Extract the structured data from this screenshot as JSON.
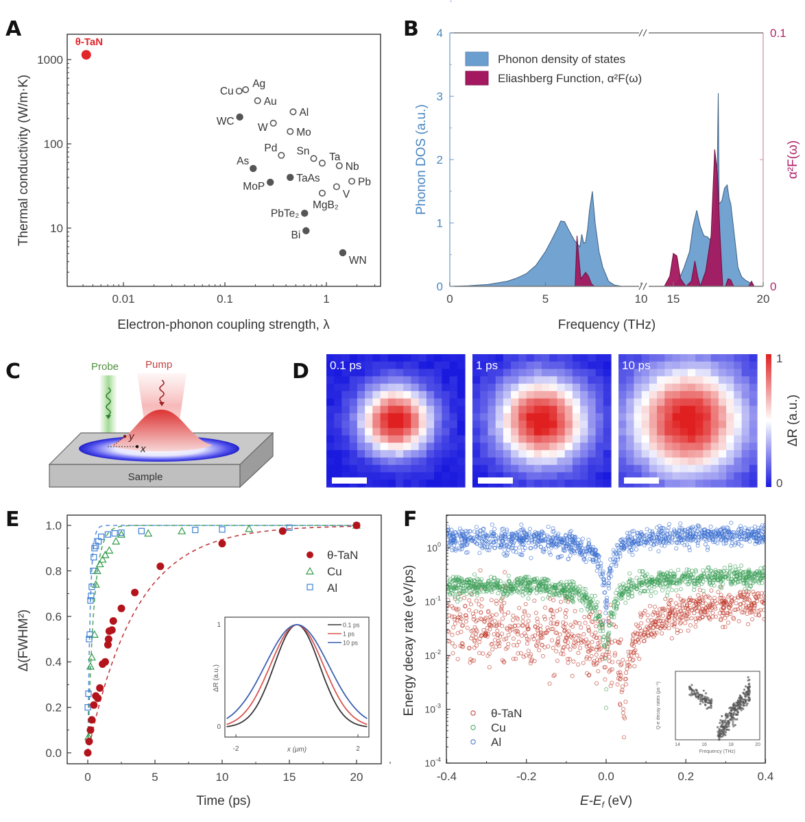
{
  "panels": {
    "A": "A",
    "B": "B",
    "C": "C",
    "D": "D",
    "E": "E",
    "F": "F"
  },
  "chart_data": [
    {
      "id": "A",
      "type": "scatter",
      "title": "",
      "xlabel": "Electron-phonon coupling strength, λ",
      "ylabel": "Thermal conductivity (W/m·K)",
      "xscale": "log",
      "yscale": "log",
      "xlim": [
        0.003,
        3.3
      ],
      "ylim": [
        2.2,
        2000
      ],
      "xticks": [
        {
          "v": 0.01,
          "label": "0.01"
        },
        {
          "v": 0.1,
          "label": "0.1"
        },
        {
          "v": 1,
          "label": "1"
        }
      ],
      "yticks": [
        {
          "v": 10,
          "label": "10"
        },
        {
          "v": 100,
          "label": "100"
        },
        {
          "v": 1000,
          "label": "1000"
        }
      ],
      "highlight_color": "#e3262a",
      "points": [
        {
          "name": "θ-TaN",
          "x": 0.0043,
          "y": 1140,
          "marker": "highlight",
          "label_pos": "above"
        },
        {
          "name": "Cu",
          "x": 0.138,
          "y": 423,
          "marker": "open",
          "label_pos": "left"
        },
        {
          "name": "Ag",
          "x": 0.16,
          "y": 440,
          "marker": "open",
          "label_pos": "above-right"
        },
        {
          "name": "Au",
          "x": 0.21,
          "y": 325,
          "marker": "open",
          "label_pos": "right"
        },
        {
          "name": "Al",
          "x": 0.47,
          "y": 240,
          "marker": "open",
          "label_pos": "right"
        },
        {
          "name": "WC",
          "x": 0.14,
          "y": 208,
          "marker": "filled",
          "label_pos": "below-left"
        },
        {
          "name": "W",
          "x": 0.3,
          "y": 176,
          "marker": "open",
          "label_pos": "below-left"
        },
        {
          "name": "Mo",
          "x": 0.44,
          "y": 140,
          "marker": "open",
          "label_pos": "right"
        },
        {
          "name": "Pd",
          "x": 0.36,
          "y": 73,
          "marker": "open",
          "label_pos": "above-left"
        },
        {
          "name": "Sn",
          "x": 0.75,
          "y": 67,
          "marker": "open",
          "label_pos": "above-left"
        },
        {
          "name": "Ta",
          "x": 0.91,
          "y": 59,
          "marker": "open",
          "label_pos": "above-right"
        },
        {
          "name": "Nb",
          "x": 1.34,
          "y": 55,
          "marker": "open",
          "label_pos": "right"
        },
        {
          "name": "As",
          "x": 0.19,
          "y": 51,
          "marker": "filled",
          "label_pos": "above-left"
        },
        {
          "name": "TaAs",
          "x": 0.44,
          "y": 40,
          "marker": "filled",
          "label_pos": "right"
        },
        {
          "name": "Pb",
          "x": 1.78,
          "y": 36,
          "marker": "open",
          "label_pos": "right"
        },
        {
          "name": "MoP",
          "x": 0.28,
          "y": 35,
          "marker": "filled",
          "label_pos": "below-left"
        },
        {
          "name": "V",
          "x": 1.26,
          "y": 31,
          "marker": "open",
          "label_pos": "below-right"
        },
        {
          "name": "MgB₂",
          "x": 0.91,
          "y": 26,
          "marker": "open",
          "label_pos": "below"
        },
        {
          "name": "PbTe₂",
          "x": 0.61,
          "y": 15,
          "marker": "filled",
          "label_pos": "left"
        },
        {
          "name": "Bi",
          "x": 0.63,
          "y": 9.3,
          "marker": "filled",
          "label_pos": "below-left"
        },
        {
          "name": "WN",
          "x": 1.45,
          "y": 5.1,
          "marker": "filled",
          "label_pos": "below-right"
        }
      ]
    },
    {
      "id": "B",
      "type": "area",
      "xlabel": "Frequency (THz)",
      "ylabel_left": "Phonon DOS (a.u.)",
      "ylabel_right": "α²F(ω)",
      "xlim": [
        0,
        20
      ],
      "x_break": [
        10,
        15
      ],
      "ylim_left": [
        0,
        4
      ],
      "ylim_right": [
        0,
        0.1
      ],
      "xticks": [
        "0",
        "5",
        "10",
        "15",
        "20"
      ],
      "yticks_left": [
        "0",
        "1",
        "2",
        "3",
        "4"
      ],
      "yticks_right": [
        "0",
        "0.1"
      ],
      "left_axis_color": "#4a86c0",
      "right_axis_color": "#b0246a",
      "legend": [
        {
          "label": "Phonon density of states",
          "color": "#6a9ecf"
        },
        {
          "label": "Eliashberg Function, α²F(ω)",
          "color": "#a3185e"
        }
      ],
      "series": [
        {
          "name": "Phonon density of states",
          "axis": "left",
          "color": "#6a9ecf",
          "x": [
            0,
            1,
            2,
            3,
            3.5,
            4,
            4.5,
            5,
            5.3,
            5.6,
            5.8,
            6.0,
            6.2,
            6.5,
            6.8,
            6.9,
            7.0,
            7.1,
            7.2,
            7.3,
            7.45,
            7.6,
            7.8,
            8.0,
            8.3,
            8.6,
            9.0,
            10,
            15,
            15.3,
            15.6,
            15.9,
            16.1,
            16.3,
            16.5,
            16.7,
            16.9,
            17.1,
            17.3,
            17.45,
            17.5,
            17.55,
            17.7,
            17.85,
            18.0,
            18.1,
            18.2,
            18.4,
            18.6,
            18.8,
            19.0,
            19.3,
            19.5,
            20
          ],
          "y": [
            0,
            0.01,
            0.03,
            0.08,
            0.13,
            0.2,
            0.33,
            0.55,
            0.72,
            0.9,
            1.03,
            1.02,
            0.9,
            0.73,
            0.62,
            0.82,
            0.68,
            0.7,
            0.9,
            1.2,
            1.5,
            1.0,
            0.55,
            0.3,
            0.08,
            0.02,
            0.0,
            0.0,
            0.0,
            0.1,
            0.3,
            0.55,
            0.95,
            1.2,
            0.95,
            0.8,
            0.78,
            0.72,
            1.0,
            2.0,
            3.05,
            1.3,
            1.35,
            1.55,
            1.6,
            1.4,
            1.3,
            0.8,
            0.3,
            0.15,
            0.1,
            0.05,
            0.0,
            0.0
          ]
        },
        {
          "name": "Eliashberg Function",
          "axis": "right",
          "color": "#a3185e",
          "x": [
            6.55,
            6.65,
            6.75,
            6.85,
            6.95,
            7.1,
            7.25,
            7.4,
            7.55,
            14.5,
            14.8,
            15.0,
            15.2,
            15.4,
            15.7,
            16.0,
            16.2,
            16.35,
            16.5,
            16.8,
            17.1,
            17.3,
            17.45,
            17.6,
            17.75,
            17.9,
            18.05,
            18.2,
            18.35,
            19.2,
            19.35,
            19.5
          ],
          "y": [
            0,
            0.02,
            0.011,
            0.003,
            0.004,
            0.0055,
            0.004,
            0.001,
            0,
            0,
            0.004,
            0.013,
            0.012,
            0.003,
            0,
            0.002,
            0.01,
            0.004,
            0,
            0.006,
            0.02,
            0.054,
            0.045,
            0.02,
            0,
            0,
            0.003,
            0.0025,
            0,
            0,
            0.002,
            0
          ]
        }
      ]
    },
    {
      "id": "D",
      "type": "heatmap",
      "frames": [
        {
          "label": "0.1 ps",
          "sigma_rel": 0.26
        },
        {
          "label": "1 ps",
          "sigma_rel": 0.33
        },
        {
          "label": "10 ps",
          "sigma_rel": 0.42
        }
      ],
      "colorbar": {
        "label": "ΔR (a.u.)",
        "min": "0",
        "max": "1",
        "colors": [
          "#1a1adf",
          "#ffffff",
          "#e02020"
        ]
      }
    },
    {
      "id": "E",
      "type": "scatter",
      "xlabel": "Time (ps)",
      "ylabel": "Δ(FWHM²)",
      "xlim": [
        -1.5,
        21.5
      ],
      "ylim": [
        -0.05,
        1.05
      ],
      "xticks": [
        "0",
        "5",
        "10",
        "15",
        "20"
      ],
      "yticks": [
        "0.0",
        "0.2",
        "0.4",
        "0.6",
        "0.8",
        "1.0"
      ],
      "legend_position": "top-right",
      "series": [
        {
          "name": "θ-TaN",
          "marker": "filled-circle",
          "color": "#b3141b",
          "x": [
            0,
            0.1,
            0.2,
            0.3,
            0.45,
            0.6,
            0.75,
            0.9,
            1.1,
            1.3,
            1.5,
            1.55,
            1.6,
            1.8,
            1.9,
            2.5,
            3.5,
            5.4,
            10,
            14.5,
            20
          ],
          "y": [
            0.0,
            0.05,
            0.1,
            0.145,
            0.21,
            0.25,
            0.24,
            0.285,
            0.39,
            0.4,
            0.475,
            0.5,
            0.535,
            0.54,
            0.58,
            0.635,
            0.705,
            0.82,
            0.92,
            0.975,
            1.0
          ]
        },
        {
          "name": "Cu",
          "marker": "open-triangle",
          "color": "#2f9a47",
          "x": [
            0.05,
            0.2,
            0.3,
            0.5,
            0.6,
            0.7,
            0.9,
            1.1,
            1.3,
            1.6,
            2.1,
            2.5,
            4.5,
            7,
            12,
            20
          ],
          "y": [
            0.07,
            0.38,
            0.42,
            0.52,
            0.74,
            0.8,
            0.83,
            0.85,
            0.87,
            0.89,
            0.93,
            0.96,
            0.965,
            0.975,
            0.985,
            1.0
          ]
        },
        {
          "name": "Al",
          "marker": "open-square",
          "color": "#3b7ed1",
          "x": [
            0.0,
            0.05,
            0.1,
            0.15,
            0.2,
            0.25,
            0.3,
            0.4,
            0.45,
            0.5,
            0.6,
            0.8,
            1.0,
            1.5,
            2,
            2.5,
            4,
            8,
            10,
            15,
            20
          ],
          "y": [
            0.2,
            0.26,
            0.5,
            0.52,
            0.67,
            0.69,
            0.73,
            0.8,
            0.86,
            0.9,
            0.91,
            0.93,
            0.95,
            0.96,
            0.965,
            0.968,
            0.975,
            0.98,
            0.982,
            0.99,
            1.0
          ]
        }
      ],
      "inset": {
        "type": "line",
        "xlabel": "x (μm)",
        "ylabel": "ΔR (a.u.)",
        "xticks": [
          "-2",
          "2"
        ],
        "yticks": [
          "0",
          "1"
        ],
        "xlim": [
          -2.3,
          2.3
        ],
        "series": [
          {
            "name": "0.1 ps",
            "color": "#333333",
            "fwhm": 1.75
          },
          {
            "name": "1 ps",
            "color": "#d9534f",
            "fwhm": 2.05
          },
          {
            "name": "10 ps",
            "color": "#3a5fb0",
            "fwhm": 2.45
          }
        ]
      }
    },
    {
      "id": "F",
      "type": "scatter",
      "xlabel": "E-E_f (eV)",
      "xlabel_main": "E-E",
      "xlabel_sub": "f",
      "xlabel_unit": " (eV)",
      "ylabel": "Energy decay rate (eV/ps)",
      "yscale": "log",
      "xlim": [
        -0.4,
        0.4
      ],
      "ylim": [
        0.0001,
        4
      ],
      "xticks": [
        "-0.4",
        "-0.2",
        "0.0",
        "0.2",
        "0.4"
      ],
      "yticks": [
        {
          "exp": 0
        },
        {
          "exp": -1
        },
        {
          "exp": -2
        },
        {
          "exp": -3
        },
        {
          "exp": -4
        }
      ],
      "legend_position": "bottom-left",
      "series": [
        {
          "name": "θ-TaN",
          "color": "#c0392b",
          "trend": "left plateau ~0.02–0.05, scattered down to 0.002, minimum ~1e-4 near 0.05 eV, rises to ~0.1 at 0.4 eV"
        },
        {
          "name": "Cu",
          "color": "#3fa05a",
          "trend": "plateau ~0.2 at -0.4 eV, dip to ~1e-3 at 0 eV, ~0.28 at 0.4 eV"
        },
        {
          "name": "Al",
          "color": "#3b6fd0",
          "trend": "~1.6 at -0.4 eV, dip to ~0.05 at 0 eV, ~1.7 at 0.4 eV"
        }
      ],
      "inset": {
        "xlabel": "Frequency (THz)",
        "ylabel": "Q-e decay rates (ps⁻¹)",
        "xticks": [
          "14",
          "16",
          "18",
          "20"
        ],
        "yticks": [
          "10⁻³",
          "10⁻²",
          "10⁻¹",
          "10⁰"
        ]
      }
    }
  ],
  "diagram_C": {
    "probe_label": "Probe",
    "pump_label": "Pump",
    "sample_label": "Sample",
    "x_axis_label": "x",
    "y_axis_label": "y",
    "probe_color": "#7bc46b",
    "pump_color": "#e85555"
  }
}
